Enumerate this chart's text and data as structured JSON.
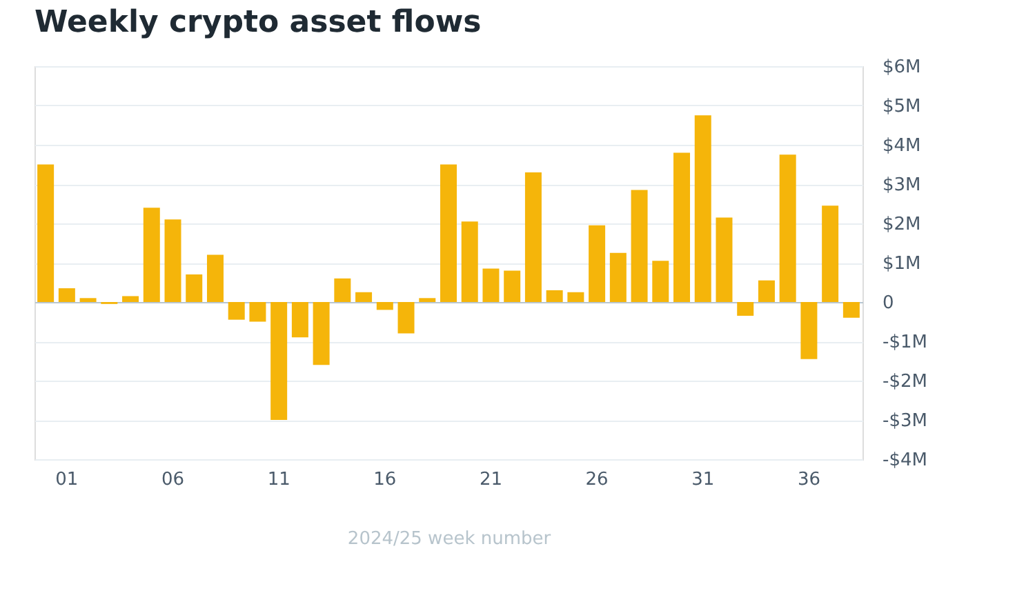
{
  "chart_data": {
    "type": "bar",
    "title": "Weekly crypto asset flows",
    "xlabel": "2024/25 week number",
    "categories": [
      null,
      "01",
      null,
      null,
      null,
      null,
      "06",
      null,
      null,
      null,
      null,
      "11",
      null,
      null,
      null,
      null,
      "16",
      null,
      null,
      null,
      null,
      "21",
      null,
      null,
      null,
      null,
      "26",
      null,
      null,
      null,
      null,
      "31",
      null,
      null,
      null,
      null,
      "36",
      null,
      null
    ],
    "values": [
      3.5,
      0.35,
      0.1,
      -0.05,
      0.15,
      2.4,
      2.1,
      0.7,
      1.2,
      -0.45,
      -0.5,
      -3.0,
      -0.9,
      -1.6,
      0.6,
      0.25,
      -0.2,
      -0.8,
      0.1,
      3.5,
      2.05,
      0.85,
      0.8,
      3.3,
      0.3,
      0.25,
      1.95,
      1.25,
      2.85,
      1.05,
      3.8,
      4.75,
      2.15,
      -0.35,
      0.55,
      3.75,
      -1.45,
      2.45,
      -0.4
    ],
    "color": "#f5b50a",
    "ylim": [
      -4,
      6
    ],
    "yticks": [
      {
        "value": -4,
        "label": "-$4M"
      },
      {
        "value": -3,
        "label": "-$3M"
      },
      {
        "value": -2,
        "label": "-$2M"
      },
      {
        "value": -1,
        "label": "-$1M"
      },
      0,
      {
        "value": 1,
        "label": "$1M"
      },
      {
        "value": 2,
        "label": "$2M"
      },
      {
        "value": 3,
        "label": "$3M"
      },
      {
        "value": 4,
        "label": "$4M"
      },
      {
        "value": 5,
        "label": "$5M"
      },
      {
        "value": 6,
        "label": "$6M"
      }
    ],
    "grid": "y"
  }
}
